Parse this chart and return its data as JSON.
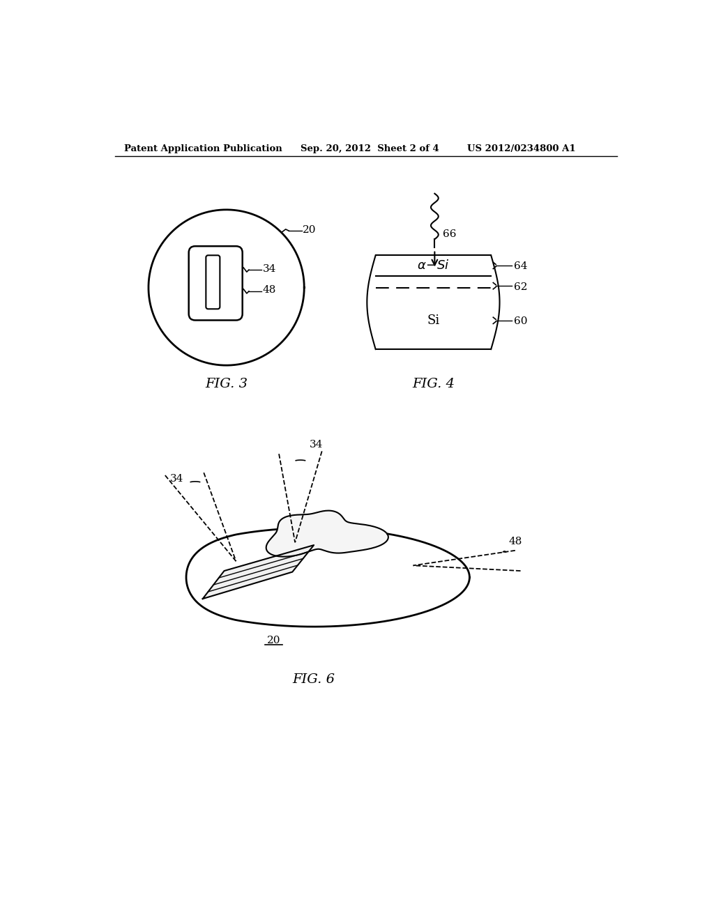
{
  "bg_color": "#ffffff",
  "text_color": "#000000",
  "header_left": "Patent Application Publication",
  "header_center": "Sep. 20, 2012  Sheet 2 of 4",
  "header_right": "US 2012/0234800 A1",
  "fig3_label": "FIG. 3",
  "fig4_label": "FIG. 4",
  "fig6_label": "FIG. 6",
  "ref_20": "20",
  "ref_34": "34",
  "ref_48": "48",
  "ref_60": "60",
  "ref_62": "62",
  "ref_64": "64",
  "ref_66": "66"
}
